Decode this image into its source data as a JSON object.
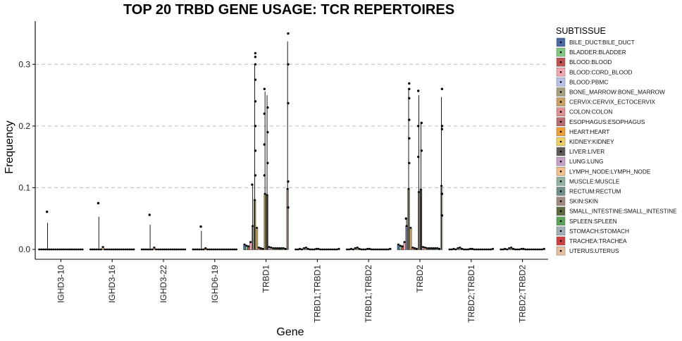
{
  "chart_data": {
    "type": "bar",
    "title": "TOP 20 TRBD GENE USAGE: TCR REPERTOIRES",
    "xlabel": "Gene",
    "ylabel": "Frequency",
    "ylim": [
      -0.016,
      0.37
    ],
    "yticks": [
      0.0,
      0.1,
      0.2,
      0.3
    ],
    "ytick_labels": [
      "0.0",
      "0.1",
      "0.2",
      "0.3"
    ],
    "grid": "horizontal-dashed",
    "legend_position": "right",
    "legend_title": "SUBTISSUE",
    "categories": [
      "IGHD3-10",
      "IGHD3-16",
      "IGHD3-22",
      "IGHD6-19",
      "TRBD1",
      "TRBD1;TRBD1",
      "TRBD1;TRBD2",
      "TRBD2",
      "TRBD2;TRBD1",
      "TRBD2;TRBD2"
    ],
    "series": [
      {
        "name": "BILE_DUCT:BILE_DUCT",
        "color": "#4a6aa5",
        "values": [
          0.0,
          0.0,
          0.0,
          0.0,
          0.008,
          0.0,
          0.0,
          0.008,
          0.0,
          0.0
        ]
      },
      {
        "name": "BLADDER:BLADDER",
        "color": "#7fc97f",
        "values": [
          0.0,
          0.0,
          0.0,
          0.0,
          0.006,
          0.0,
          0.0,
          0.006,
          0.0,
          0.0
        ]
      },
      {
        "name": "BLOOD:BLOOD",
        "color": "#c0504d",
        "values": [
          0.0,
          0.0,
          0.0,
          0.0,
          0.005,
          0.001,
          0.001,
          0.005,
          0.001,
          0.001
        ]
      },
      {
        "name": "BLOOD:CORD_BLOOD",
        "color": "#f4a6b0",
        "values": [
          0.0,
          0.0,
          0.0,
          0.0,
          0.012,
          0.0,
          0.0,
          0.012,
          0.0,
          0.0
        ]
      },
      {
        "name": "BLOOD:PBMC",
        "color": "#b8c0e8",
        "values": [
          0.0,
          0.0,
          0.0,
          0.0,
          0.038,
          0.002,
          0.002,
          0.038,
          0.002,
          0.002
        ]
      },
      {
        "name": "BONE_MARROW:BONE_MARROW",
        "color": "#a3a07a",
        "values": [
          0.0,
          0.0,
          0.0,
          0.0,
          0.08,
          0.003,
          0.003,
          0.098,
          0.003,
          0.003
        ]
      },
      {
        "name": "CERVIX:CERVIX_ECTOCERVIX",
        "color": "#c8a060",
        "values": [
          0.0,
          0.004,
          0.003,
          0.002,
          0.035,
          0.001,
          0.001,
          0.035,
          0.001,
          0.001
        ]
      },
      {
        "name": "COLON:COLON",
        "color": "#e09090",
        "values": [
          0.0,
          0.0,
          0.0,
          0.0,
          0.003,
          0.0,
          0.0,
          0.003,
          0.0,
          0.0
        ]
      },
      {
        "name": "ESOPHAGUS:ESOPHAGUS",
        "color": "#b86b70",
        "values": [
          0.0,
          0.0,
          0.0,
          0.0,
          0.002,
          0.0,
          0.0,
          0.002,
          0.0,
          0.0
        ]
      },
      {
        "name": "HEART:HEART",
        "color": "#f0a030",
        "values": [
          0.0,
          0.0,
          0.0,
          0.0,
          0.001,
          0.0,
          0.0,
          0.001,
          0.0,
          0.0
        ]
      },
      {
        "name": "KIDNEY:KIDNEY",
        "color": "#f0d060",
        "values": [
          0.0,
          0.0,
          0.0,
          0.0,
          0.09,
          0.001,
          0.001,
          0.093,
          0.001,
          0.001
        ]
      },
      {
        "name": "LIVER:LIVER",
        "color": "#5f5a55",
        "values": [
          0.0,
          0.0,
          0.0,
          0.0,
          0.088,
          0.001,
          0.001,
          0.097,
          0.001,
          0.001
        ]
      },
      {
        "name": "LUNG:LUNG",
        "color": "#c79fc9",
        "values": [
          0.0,
          0.0,
          0.0,
          0.0,
          0.004,
          0.0,
          0.0,
          0.004,
          0.0,
          0.0
        ]
      },
      {
        "name": "LYMPH_NODE:LYMPH_NODE",
        "color": "#f4c08a",
        "values": [
          0.0,
          0.0,
          0.0,
          0.0,
          0.003,
          0.0,
          0.0,
          0.003,
          0.0,
          0.0
        ]
      },
      {
        "name": "MUSCLE:MUSCLE",
        "color": "#8fb3a0",
        "values": [
          0.0,
          0.0,
          0.0,
          0.0,
          0.002,
          0.0,
          0.0,
          0.002,
          0.0,
          0.0
        ]
      },
      {
        "name": "RECTUM:RECTUM",
        "color": "#6f8f8a",
        "values": [
          0.0,
          0.0,
          0.0,
          0.0,
          0.002,
          0.0,
          0.0,
          0.002,
          0.0,
          0.0
        ]
      },
      {
        "name": "SKIN:SKIN",
        "color": "#a08a80",
        "values": [
          0.0,
          0.0,
          0.0,
          0.0,
          0.002,
          0.0,
          0.0,
          0.002,
          0.0,
          0.0
        ]
      },
      {
        "name": "SMALL_INTESTINE:SMALL_INTESTINE",
        "color": "#5e6b3e",
        "values": [
          0.0,
          0.0,
          0.0,
          0.0,
          0.002,
          0.0,
          0.0,
          0.002,
          0.0,
          0.0
        ]
      },
      {
        "name": "SPLEEN:SPLEEN",
        "color": "#5aa55a",
        "values": [
          0.0,
          0.0,
          0.0,
          0.0,
          0.002,
          0.0,
          0.0,
          0.002,
          0.0,
          0.0
        ]
      },
      {
        "name": "STOMACH:STOMACH",
        "color": "#9fb0b8",
        "values": [
          0.0,
          0.0,
          0.0,
          0.0,
          0.002,
          0.0,
          0.0,
          0.002,
          0.0,
          0.0
        ]
      },
      {
        "name": "TRACHEA:TRACHEA",
        "color": "#d04040",
        "values": [
          0.0,
          0.0,
          0.0,
          0.0,
          0.001,
          0.0,
          0.0,
          0.001,
          0.0,
          0.0
        ]
      },
      {
        "name": "UTERUS:UTERUS",
        "color": "#e8c0a0",
        "values": [
          0.0,
          0.0,
          0.0,
          0.0,
          0.098,
          0.001,
          0.001,
          0.103,
          0.001,
          0.001
        ]
      }
    ],
    "points": [
      {
        "category": "IGHD3-10",
        "series": "BLOOD:PBMC",
        "y": 0.061
      },
      {
        "category": "IGHD3-16",
        "series": "BLOOD:PBMC",
        "y": 0.075
      },
      {
        "category": "IGHD3-22",
        "series": "BLOOD:PBMC",
        "y": 0.056
      },
      {
        "category": "IGHD6-19",
        "series": "BLOOD:PBMC",
        "y": 0.037
      },
      {
        "category": "TRBD1",
        "series": "BLOOD:PBMC",
        "y": 0.105
      },
      {
        "category": "TRBD1",
        "series": "BONE_MARROW:BONE_MARROW",
        "y": 0.318
      },
      {
        "category": "TRBD1",
        "series": "BONE_MARROW:BONE_MARROW",
        "y": 0.312
      },
      {
        "category": "TRBD1",
        "series": "BONE_MARROW:BONE_MARROW",
        "y": 0.3
      },
      {
        "category": "TRBD1",
        "series": "BONE_MARROW:BONE_MARROW",
        "y": 0.275
      },
      {
        "category": "TRBD1",
        "series": "BONE_MARROW:BONE_MARROW",
        "y": 0.24
      },
      {
        "category": "TRBD1",
        "series": "BONE_MARROW:BONE_MARROW",
        "y": 0.2
      },
      {
        "category": "TRBD1",
        "series": "BONE_MARROW:BONE_MARROW",
        "y": 0.16
      },
      {
        "category": "TRBD1",
        "series": "BONE_MARROW:BONE_MARROW",
        "y": 0.12
      },
      {
        "category": "TRBD1",
        "series": "KIDNEY:KIDNEY",
        "y": 0.26
      },
      {
        "category": "TRBD1",
        "series": "KIDNEY:KIDNEY",
        "y": 0.22
      },
      {
        "category": "TRBD1",
        "series": "KIDNEY:KIDNEY",
        "y": 0.17
      },
      {
        "category": "TRBD1",
        "series": "KIDNEY:KIDNEY",
        "y": 0.12
      },
      {
        "category": "TRBD1",
        "series": "LIVER:LIVER",
        "y": 0.23
      },
      {
        "category": "TRBD1",
        "series": "LIVER:LIVER",
        "y": 0.19
      },
      {
        "category": "TRBD1",
        "series": "LIVER:LIVER",
        "y": 0.14
      },
      {
        "category": "TRBD1",
        "series": "UTERUS:UTERUS",
        "y": 0.35
      },
      {
        "category": "TRBD1",
        "series": "UTERUS:UTERUS",
        "y": 0.3
      },
      {
        "category": "TRBD1",
        "series": "UTERUS:UTERUS",
        "y": 0.237
      },
      {
        "category": "TRBD1",
        "series": "UTERUS:UTERUS",
        "y": 0.11
      },
      {
        "category": "TRBD1",
        "series": "UTERUS:UTERUS",
        "y": 0.068
      },
      {
        "category": "TRBD2",
        "series": "BLOOD:PBMC",
        "y": 0.05
      },
      {
        "category": "TRBD2",
        "series": "BONE_MARROW:BONE_MARROW",
        "y": 0.269
      },
      {
        "category": "TRBD2",
        "series": "BONE_MARROW:BONE_MARROW",
        "y": 0.26
      },
      {
        "category": "TRBD2",
        "series": "BONE_MARROW:BONE_MARROW",
        "y": 0.245
      },
      {
        "category": "TRBD2",
        "series": "BONE_MARROW:BONE_MARROW",
        "y": 0.21
      },
      {
        "category": "TRBD2",
        "series": "BONE_MARROW:BONE_MARROW",
        "y": 0.18
      },
      {
        "category": "TRBD2",
        "series": "BONE_MARROW:BONE_MARROW",
        "y": 0.14
      },
      {
        "category": "TRBD2",
        "series": "KIDNEY:KIDNEY",
        "y": 0.257
      },
      {
        "category": "TRBD2",
        "series": "KIDNEY:KIDNEY",
        "y": 0.2
      },
      {
        "category": "TRBD2",
        "series": "KIDNEY:KIDNEY",
        "y": 0.15
      },
      {
        "category": "TRBD2",
        "series": "LIVER:LIVER",
        "y": 0.205
      },
      {
        "category": "TRBD2",
        "series": "LIVER:LIVER",
        "y": 0.16
      },
      {
        "category": "TRBD2",
        "series": "UTERUS:UTERUS",
        "y": 0.26
      },
      {
        "category": "TRBD2",
        "series": "UTERUS:UTERUS",
        "y": 0.2
      },
      {
        "category": "TRBD2",
        "series": "UTERUS:UTERUS",
        "y": 0.195
      },
      {
        "category": "TRBD2",
        "series": "UTERUS:UTERUS",
        "y": 0.09
      },
      {
        "category": "TRBD2",
        "series": "UTERUS:UTERUS",
        "y": 0.055
      }
    ],
    "error_bars": [
      {
        "category": "IGHD3-10",
        "series": "BLOOD:PBMC",
        "high": 0.043
      },
      {
        "category": "IGHD3-16",
        "series": "BLOOD:PBMC",
        "high": 0.053
      },
      {
        "category": "IGHD3-22",
        "series": "BLOOD:PBMC",
        "high": 0.04
      },
      {
        "category": "IGHD6-19",
        "series": "BLOOD:PBMC",
        "high": 0.03
      },
      {
        "category": "TRBD1",
        "series": "BLOOD:PBMC",
        "high": 0.105
      },
      {
        "category": "TRBD1",
        "series": "BONE_MARROW:BONE_MARROW",
        "high": 0.3
      },
      {
        "category": "TRBD1",
        "series": "KIDNEY:KIDNEY",
        "high": 0.256
      },
      {
        "category": "TRBD1",
        "series": "LIVER:LIVER",
        "high": 0.25
      },
      {
        "category": "TRBD1",
        "series": "UTERUS:UTERUS",
        "high": 0.337
      },
      {
        "category": "TRBD2",
        "series": "BLOOD:PBMC",
        "high": 0.05
      },
      {
        "category": "TRBD2",
        "series": "BONE_MARROW:BONE_MARROW",
        "high": 0.26
      },
      {
        "category": "TRBD2",
        "series": "KIDNEY:KIDNEY",
        "high": 0.25
      },
      {
        "category": "TRBD2",
        "series": "LIVER:LIVER",
        "high": 0.205
      },
      {
        "category": "TRBD2",
        "series": "UTERUS:UTERUS",
        "high": 0.247
      }
    ]
  }
}
